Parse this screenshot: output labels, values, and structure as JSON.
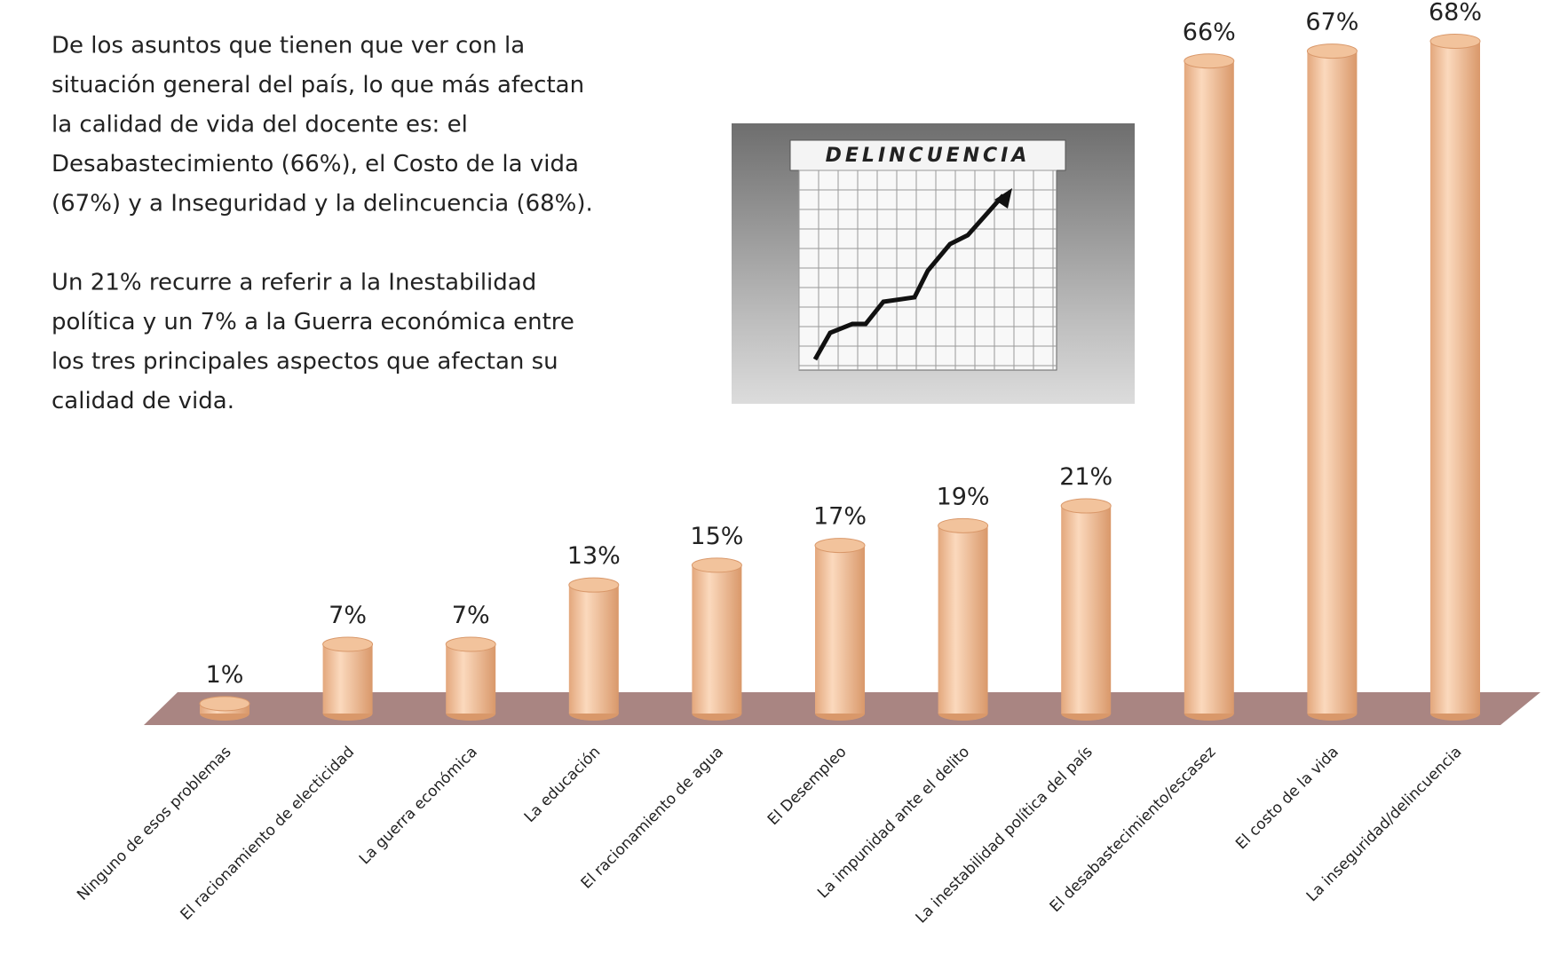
{
  "text_block": [
    [
      "De los asuntos que tienen que ver con la",
      "situación general del país, lo que más afectan",
      "la calidad de vida del docente es: el",
      "Desabastecimiento (66%),  el Costo de la vida",
      "(67%)  y a Inseguridad y la delincuencia (68%)."
    ],
    [
      "Un 21% recurre a referir a la Inestabilidad",
      "política y un 7% a la Guerra económica entre",
      "los tres principales  aspectos que afectan su",
      "calidad de vida."
    ]
  ],
  "image_text": "DELINCUENCIA",
  "chart_data": {
    "type": "bar",
    "color": "#f2c39c",
    "categories": [
      "Ninguno de esos problemas",
      "El racionamiento de electicidad",
      "La guerra económica",
      "La educación",
      "El racionamiento de agua",
      "El Desempleo",
      "La impunidad ante el delito",
      "La inestabilidad política del país",
      "El desabastecimiento/escasez",
      "El costo de la vida",
      "La inseguridad/delincuencia"
    ],
    "values": [
      1,
      7,
      7,
      13,
      15,
      17,
      19,
      21,
      66,
      67,
      68
    ],
    "value_labels": [
      "1%",
      "7%",
      "7%",
      "13%",
      "15%",
      "17%",
      "19%",
      "21%",
      "66%",
      "67%",
      "68%"
    ]
  }
}
